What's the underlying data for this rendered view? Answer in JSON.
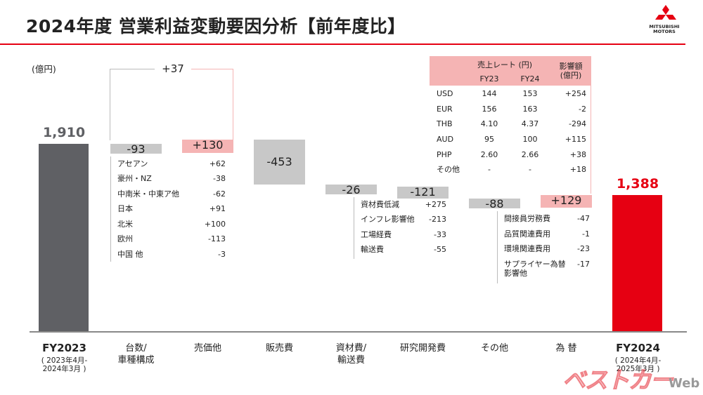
{
  "title": "2024年度 営業利益変動要因分析【前年度比】",
  "logo": {
    "text_line1": "MITSUBISHI",
    "text_line2": "MOTORS",
    "color": "#e60012"
  },
  "unit_label": "(億円)",
  "colors": {
    "fy2023": "#5f6064",
    "fy2024": "#e60012",
    "positive": "#f5b4b4",
    "negative": "#c8c8c8",
    "bracket_grey": "#bbbbbb",
    "bracket_pink": "#f5b4b4"
  },
  "combined_label": "+37",
  "chart_data": {
    "type": "bar",
    "subtype": "waterfall",
    "unit": "(億円)",
    "start": {
      "label": "1,910",
      "value": 1910,
      "category": "FY2023",
      "period": [
        "2023年4月-",
        "2024年3月"
      ]
    },
    "end": {
      "label": "1,388",
      "value": 1388,
      "category": "FY2024",
      "period": [
        "2024年4月-",
        "2025年3月"
      ]
    },
    "steps": [
      {
        "category": [
          "台数/",
          "車種構成"
        ],
        "label": "-93",
        "value": -93,
        "breakdown": [
          {
            "name": "アセアン",
            "value": "+62"
          },
          {
            "name": "豪州・NZ",
            "value": "-38"
          },
          {
            "name": "中南米・中東ア他",
            "value": "-62"
          },
          {
            "name": "日本",
            "value": "+91"
          },
          {
            "name": "北米",
            "value": "+100"
          },
          {
            "name": "欧州",
            "value": "-113"
          },
          {
            "name": "中国 他",
            "value": "-3"
          }
        ]
      },
      {
        "category": [
          "売価他"
        ],
        "label": "+130",
        "value": 130,
        "breakdown": []
      },
      {
        "category": [
          "販売費"
        ],
        "label": "-453",
        "value": -453,
        "breakdown": []
      },
      {
        "category": [
          "資材費/",
          "輸送費"
        ],
        "label": "-26",
        "value": -26,
        "breakdown": [
          {
            "name": "資材費低減",
            "value": "+275"
          },
          {
            "name": "インフレ影響他",
            "value": "-213"
          },
          {
            "name": "工場経費",
            "value": "-33"
          },
          {
            "name": "輸送費",
            "value": "-55"
          }
        ]
      },
      {
        "category": [
          "研究開発費"
        ],
        "label": "-121",
        "value": -121,
        "breakdown": []
      },
      {
        "category": [
          "その他"
        ],
        "label": "-88",
        "value": -88,
        "breakdown": [
          {
            "name": "間接員労務費",
            "value": "-47"
          },
          {
            "name": "品質関連費用",
            "value": "-1"
          },
          {
            "name": "環境関連費用",
            "value": "-23"
          },
          {
            "name": [
              "サプライヤー為替",
              "影響他"
            ],
            "value": "-17"
          }
        ]
      },
      {
        "category": [
          "為 替"
        ],
        "label": "+129",
        "value": 129,
        "breakdown": []
      }
    ],
    "fx_table": {
      "header_rate": "売上レート (円)",
      "header_impact": [
        "影響額",
        "(億円)"
      ],
      "col_fy23": "FY23",
      "col_fy24": "FY24",
      "rows": [
        {
          "cur": "USD",
          "fy23": "144",
          "fy24": "153",
          "impact": "+254"
        },
        {
          "cur": "EUR",
          "fy23": "156",
          "fy24": "163",
          "impact": "-2"
        },
        {
          "cur": "THB",
          "fy23": "4.10",
          "fy24": "4.37",
          "impact": "-294"
        },
        {
          "cur": "AUD",
          "fy23": "95",
          "fy24": "100",
          "impact": "+115"
        },
        {
          "cur": "PHP",
          "fy23": "2.60",
          "fy24": "2.66",
          "impact": "+38"
        },
        {
          "cur": "その他",
          "fy23": "-",
          "fy24": "-",
          "impact": "+18"
        }
      ]
    }
  },
  "watermark": {
    "text": "ベストカー",
    "suffix": "Web"
  }
}
